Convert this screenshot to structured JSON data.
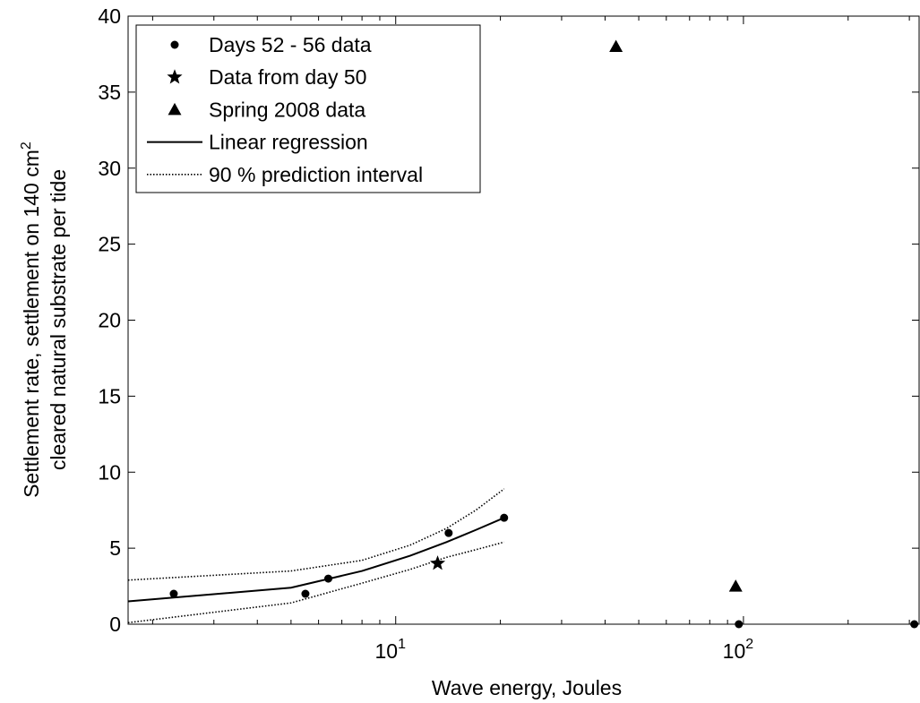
{
  "chart_data": {
    "type": "scatter",
    "x_scale": "log",
    "xlabel": "Wave energy, Joules",
    "ylabel_line1": "Settlement rate, settlement on 140 cm",
    "ylabel_sup": "2",
    "ylabel_line2": "cleared natural substrate per tide",
    "xlim": [
      1.7,
      320
    ],
    "ylim": [
      0,
      40
    ],
    "yticks": [
      0,
      5,
      10,
      15,
      20,
      25,
      30,
      35,
      40
    ],
    "xticks_major": [
      {
        "base": "10",
        "exp": "1",
        "value": 10
      },
      {
        "base": "10",
        "exp": "2",
        "value": 100
      }
    ],
    "grid": false,
    "legend_position": "top-left",
    "legend": [
      {
        "label": "Days 52 - 56 data",
        "marker": "circle"
      },
      {
        "label": "Data from day 50",
        "marker": "star"
      },
      {
        "label": "Spring 2008 data",
        "marker": "triangle"
      },
      {
        "label": "Linear regression",
        "marker": "solid-line"
      },
      {
        "label": "90 % prediction interval",
        "marker": "dotted-line"
      }
    ],
    "series": [
      {
        "name": "Days 52 - 56 data",
        "marker": "circle",
        "points": [
          [
            2.3,
            2
          ],
          [
            5.5,
            2
          ],
          [
            6.4,
            3
          ],
          [
            14.2,
            6
          ],
          [
            20.5,
            7
          ],
          [
            97,
            0
          ],
          [
            310,
            0
          ]
        ]
      },
      {
        "name": "Data from day 50",
        "marker": "star",
        "points": [
          [
            13.2,
            4
          ]
        ]
      },
      {
        "name": "Spring 2008 data",
        "marker": "triangle",
        "points": [
          [
            43,
            38
          ],
          [
            95,
            2.5
          ]
        ]
      },
      {
        "name": "Linear regression",
        "line": "solid",
        "points": [
          [
            1.7,
            1.5
          ],
          [
            5,
            2.4
          ],
          [
            8,
            3.5
          ],
          [
            11,
            4.5
          ],
          [
            14,
            5.4
          ],
          [
            17,
            6.2
          ],
          [
            20.5,
            7.0
          ]
        ]
      },
      {
        "name": "90 % prediction interval",
        "line": "dotted",
        "points": [
          [
            1.7,
            2.9
          ],
          [
            5,
            3.5
          ],
          [
            8,
            4.2
          ],
          [
            11,
            5.2
          ],
          [
            14,
            6.3
          ],
          [
            17,
            7.5
          ],
          [
            20.5,
            8.9
          ]
        ]
      },
      {
        "name": "90 % prediction interval",
        "line": "dotted",
        "points": [
          [
            1.7,
            0.1
          ],
          [
            5,
            1.4
          ],
          [
            8,
            2.7
          ],
          [
            11,
            3.6
          ],
          [
            14,
            4.4
          ],
          [
            17,
            4.9
          ],
          [
            20.5,
            5.4
          ]
        ]
      }
    ]
  }
}
